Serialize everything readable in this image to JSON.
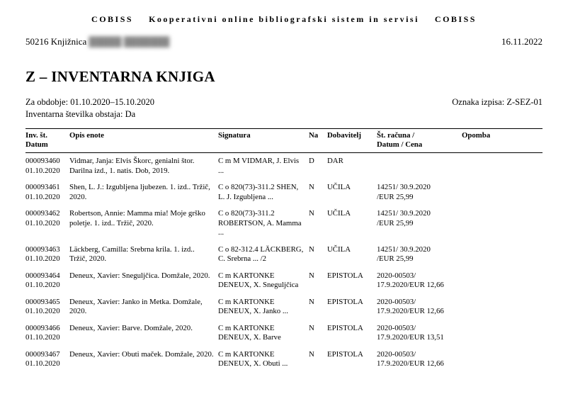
{
  "header": {
    "banner_left": "COBISS",
    "banner_mid": "Kooperativni online bibliografski sistem in servisi",
    "banner_right": "COBISS",
    "library_code": "50216",
    "library_label": "Knjižnica",
    "library_redacted": "█████ ███████",
    "print_date": "16.11.2022"
  },
  "title": "Z – INVENTARNA KNJIGA",
  "meta": {
    "period_label": "Za obdobje:",
    "period_value": "01.10.2020–15.10.2020",
    "inv_exists_label": "Inventarna številka obstaja:",
    "inv_exists_value": "Da",
    "report_code_label": "Oznaka izpisa:",
    "report_code_value": "Z-SEZ-01"
  },
  "columns": {
    "inv": "Inv. št.\nDatum",
    "opis": "Opis enote",
    "sig": "Signatura",
    "na": "Na",
    "dob": "Dobavitelj",
    "rac": "Št. računa /\nDatum  / Cena",
    "op": "Opomba"
  },
  "rows": [
    {
      "inv": "000093460\n01.10.2020",
      "opis": "Vidmar, Janja: Elvis Škorc, genialni štor. Darilna izd., 1. natis. Dob, 2019.",
      "sig": "C  m  M   VIDMAR, J.  Elvis ...",
      "na": "D",
      "dob": "DAR",
      "rac": "",
      "op": ""
    },
    {
      "inv": "000093461\n01.10.2020",
      "opis": "Shen, L. J.: Izgubljena ljubezen. 1. izd.. Tržič, 2020.",
      "sig": "C  o  820(73)-311.2 SHEN, L. J.  Izgubljena ...",
      "na": "N",
      "dob": "UČILA",
      "rac": "14251/ 30.9.2020\n/EUR 25,99",
      "op": ""
    },
    {
      "inv": "000093462\n01.10.2020",
      "opis": "Robertson, Annie: Mamma mia! Moje grško poletje. 1. izd.. Tržič, 2020.",
      "sig": "C  o  820(73)-311.2 ROBERTSON, A.  Mamma ...",
      "na": "N",
      "dob": "UČILA",
      "rac": "14251/ 30.9.2020\n/EUR 25,99",
      "op": ""
    },
    {
      "inv": "000093463\n01.10.2020",
      "opis": "Läckberg, Camilla: Srebrna krila. 1. izd.. Tržič, 2020.",
      "sig": "C  o  82-312.4 LÄCKBERG, C.  Srebrna ...  /2",
      "na": "N",
      "dob": "UČILA",
      "rac": "14251/ 30.9.2020\n/EUR 25,99",
      "op": ""
    },
    {
      "inv": "000093464\n01.10.2020",
      "opis": "Deneux, Xavier: Sneguljčica. Domžale, 2020.",
      "sig": "C  m KARTONKE DENEUX, X.  Sneguljčica",
      "na": "N",
      "dob": "EPISTOLA",
      "rac": "2020-00503/ 17.9.2020/EUR 12,66",
      "op": ""
    },
    {
      "inv": "000093465\n01.10.2020",
      "opis": "Deneux, Xavier: Janko in Metka. Domžale, 2020.",
      "sig": "C  m KARTONKE DENEUX, X.  Janko ...",
      "na": "N",
      "dob": "EPISTOLA",
      "rac": "2020-00503/ 17.9.2020/EUR 12,66",
      "op": ""
    },
    {
      "inv": "000093466\n01.10.2020",
      "opis": "Deneux, Xavier: Barve. Domžale, 2020.",
      "sig": "C  m KARTONKE DENEUX, X.  Barve",
      "na": "N",
      "dob": "EPISTOLA",
      "rac": "2020-00503/ 17.9.2020/EUR 13,51",
      "op": ""
    },
    {
      "inv": "000093467\n01.10.2020",
      "opis": "Deneux, Xavier: Obuti maček. Domžale, 2020.",
      "sig": "C  m KARTONKE DENEUX, X.  Obuti ...",
      "na": "N",
      "dob": "EPISTOLA",
      "rac": "2020-00503/ 17.9.2020/EUR 12,66",
      "op": ""
    }
  ]
}
